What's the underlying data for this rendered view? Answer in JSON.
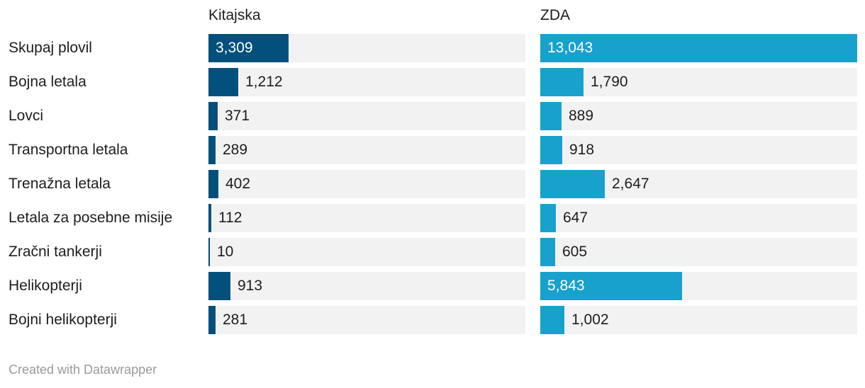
{
  "chart_data": {
    "type": "bar",
    "categories": [
      "Skupaj plovil",
      "Bojna letala",
      "Lovci",
      "Transportna letala",
      "Trenažna letala",
      "Letala za posebne misije",
      "Zračni tankerji",
      "Helikopterji",
      "Bojni helikopterji"
    ],
    "series": [
      {
        "name": "Kitajska",
        "values": [
          3309,
          1212,
          371,
          289,
          402,
          112,
          10,
          913,
          281
        ],
        "labels": [
          "3,309",
          "1,212",
          "371",
          "289",
          "402",
          "112",
          "10",
          "913",
          "281"
        ],
        "color": "#02507b"
      },
      {
        "name": "ZDA",
        "values": [
          13043,
          1790,
          889,
          918,
          2647,
          647,
          605,
          5843,
          1002
        ],
        "labels": [
          "13,043",
          "1,790",
          "889",
          "918",
          "2,647",
          "647",
          "605",
          "5,843",
          "1,002"
        ],
        "color": "#18a1cd"
      }
    ],
    "xlim": [
      0,
      13043
    ],
    "grid": false,
    "legend": "none"
  },
  "footer": "Created with Datawrapper"
}
